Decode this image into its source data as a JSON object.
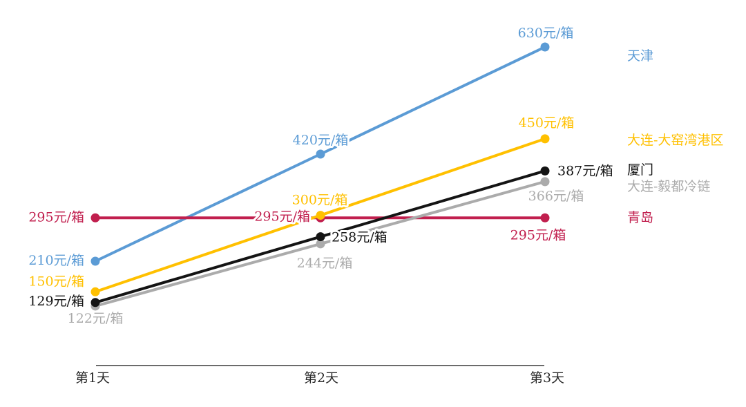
{
  "chart_data": {
    "type": "line",
    "title": "",
    "categories": [
      "第1天",
      "第2天",
      "第3天"
    ],
    "unit_suffix": "元/箱",
    "xlabel": "",
    "ylabel": "",
    "ylim": [
      0,
      720
    ],
    "grid": false,
    "legend_position": "right",
    "background_color": "#ffffff",
    "axis_color": "#3a3a3a",
    "series": [
      {
        "name": "天津",
        "color": "#5B9BD5",
        "values": [
          210,
          420,
          630
        ],
        "point_labels": [
          "210元/箱",
          "420元/箱",
          "630元/箱"
        ]
      },
      {
        "name": "大连-大窑湾港区",
        "color": "#FFC000",
        "values": [
          150,
          300,
          450
        ],
        "point_labels": [
          "150元/箱",
          "300元/箱",
          "450元/箱"
        ]
      },
      {
        "name": "厦门",
        "color": "#141414",
        "values": [
          129,
          258,
          387
        ],
        "point_labels": [
          "129元/箱",
          "258元/箱",
          "387元/箱"
        ]
      },
      {
        "name": "大连-毅都冷链",
        "color": "#ABABAB",
        "values": [
          122,
          244,
          366
        ],
        "point_labels": [
          "122元/箱",
          "244元/箱",
          "366元/箱"
        ]
      },
      {
        "name": "青岛",
        "color": "#C11F4E",
        "values": [
          295,
          295,
          295
        ],
        "point_labels": [
          "295元/箱",
          "295元/箱",
          "295元/箱"
        ]
      }
    ]
  }
}
